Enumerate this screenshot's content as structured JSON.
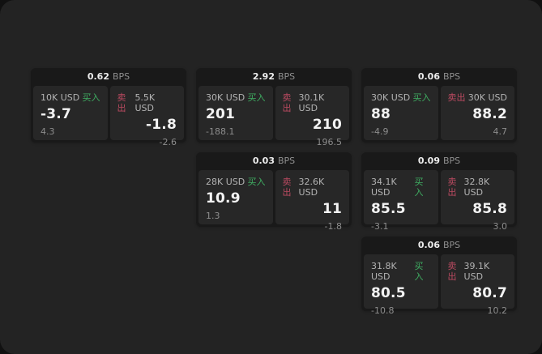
{
  "theme": {
    "backdrop": "#111111",
    "panel_bg": "#232323",
    "card_bg": "#191919",
    "cell_bg": "#272727",
    "buy_color": "#3fae62",
    "sell_color": "#bb4a61"
  },
  "labels": {
    "bps_unit": "BPS",
    "buy": "买入",
    "sell": "卖出"
  },
  "cards": [
    {
      "col": 1,
      "row": 1,
      "bps": "0.62",
      "buy": {
        "notional": "10K USD",
        "price": "-3.7",
        "sub": "4.3"
      },
      "sell": {
        "notional": "5.5K USD",
        "price": "-1.8",
        "sub": "-2.6"
      }
    },
    {
      "col": 2,
      "row": 1,
      "bps": "2.92",
      "buy": {
        "notional": "30K USD",
        "price": "201",
        "sub": "-188.1"
      },
      "sell": {
        "notional": "30.1K USD",
        "price": "210",
        "sub": "196.5"
      }
    },
    {
      "col": 3,
      "row": 1,
      "bps": "0.06",
      "buy": {
        "notional": "30K USD",
        "price": "88",
        "sub": "-4.9"
      },
      "sell": {
        "notional": "30K USD",
        "price": "88.2",
        "sub": "4.7"
      }
    },
    {
      "col": 2,
      "row": 2,
      "bps": "0.03",
      "buy": {
        "notional": "28K USD",
        "price": "10.9",
        "sub": "1.3"
      },
      "sell": {
        "notional": "32.6K USD",
        "price": "11",
        "sub": "-1.8"
      }
    },
    {
      "col": 3,
      "row": 2,
      "bps": "0.09",
      "buy": {
        "notional": "34.1K USD",
        "price": "85.5",
        "sub": "-3.1"
      },
      "sell": {
        "notional": "32.8K USD",
        "price": "85.8",
        "sub": "3.0"
      }
    },
    {
      "col": 3,
      "row": 3,
      "bps": "0.06",
      "buy": {
        "notional": "31.8K USD",
        "price": "80.5",
        "sub": "-10.8"
      },
      "sell": {
        "notional": "39.1K USD",
        "price": "80.7",
        "sub": "10.2"
      }
    }
  ]
}
